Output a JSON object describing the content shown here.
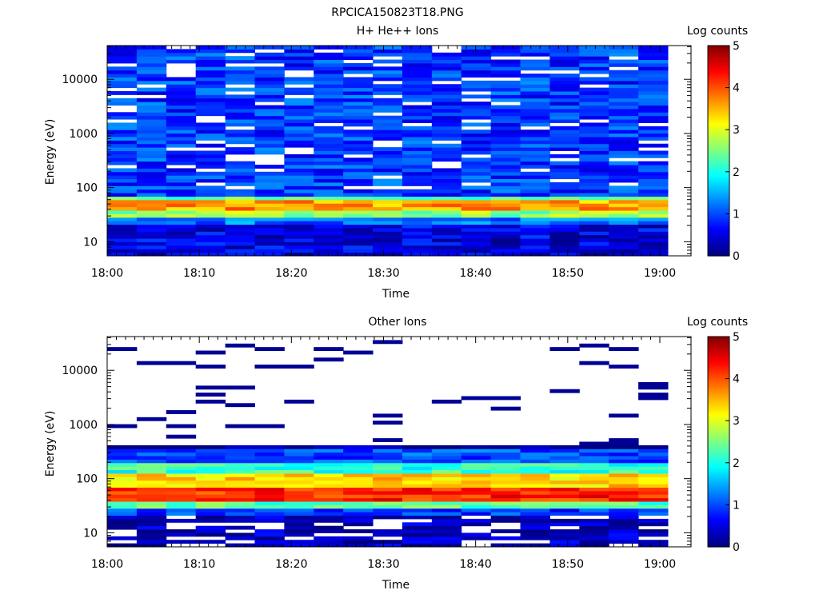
{
  "figure_title": "RPCICA150823T18.PNG",
  "chart_data": [
    {
      "type": "heatmap",
      "title": "H+ He++ Ions",
      "xlabel": "Time",
      "ylabel": "Energy (eV)",
      "x_ticks": [
        "18:00",
        "18:10",
        "18:20",
        "18:30",
        "18:40",
        "18:50",
        "19:00"
      ],
      "y_ticks": [
        "10",
        "100",
        "1000",
        "10000"
      ],
      "y_scale": "log",
      "ylim": [
        5.5,
        42000
      ],
      "time_bins": 19,
      "time_bin_labels": [
        "18:00",
        "18:03",
        "18:06",
        "18:10",
        "18:13",
        "18:16",
        "18:19",
        "18:22",
        "18:26",
        "18:29",
        "18:32",
        "18:35",
        "18:38",
        "18:42",
        "18:45",
        "18:48",
        "18:51",
        "18:54",
        "18:58"
      ],
      "energy_bands_eV": [
        {
          "range": [
            5.5,
            22
          ],
          "log_counts": 0.5
        },
        {
          "range": [
            22,
            28
          ],
          "log_counts": 1.2
        },
        {
          "range": [
            28,
            38
          ],
          "log_counts": 2.6
        },
        {
          "range": [
            38,
            58
          ],
          "log_counts": 3.6
        },
        {
          "range": [
            58,
            72
          ],
          "log_counts": 2.4
        },
        {
          "range": [
            72,
            42000
          ],
          "log_counts": 0.9
        }
      ],
      "colorbar": {
        "label": "Log counts",
        "min": 0,
        "max": 5,
        "ticks": [
          "0",
          "1",
          "2",
          "3",
          "4",
          "5"
        ]
      },
      "colormap": "jet",
      "grid": false,
      "legend_position": "right"
    },
    {
      "type": "heatmap",
      "title": "Other Ions",
      "xlabel": "Time",
      "ylabel": "Energy (eV)",
      "x_ticks": [
        "18:00",
        "18:10",
        "18:20",
        "18:30",
        "18:40",
        "18:50",
        "19:00"
      ],
      "y_ticks": [
        "10",
        "100",
        "1000",
        "10000"
      ],
      "y_scale": "log",
      "ylim": [
        5.5,
        42000
      ],
      "time_bins": 19,
      "energy_bands_eV": [
        {
          "range": [
            5.5,
            22
          ],
          "log_counts": 0.3
        },
        {
          "range": [
            22,
            28
          ],
          "log_counts": 0.9
        },
        {
          "range": [
            28,
            40
          ],
          "log_counts": 2.3
        },
        {
          "range": [
            40,
            70
          ],
          "log_counts": 4.2
        },
        {
          "range": [
            70,
            120
          ],
          "log_counts": 3.3
        },
        {
          "range": [
            120,
            200
          ],
          "log_counts": 2.1
        },
        {
          "range": [
            200,
            350
          ],
          "log_counts": 1.0
        },
        {
          "range": [
            350,
            42000
          ],
          "log_counts": 0.1
        }
      ],
      "colorbar": {
        "label": "Log counts",
        "min": 0,
        "max": 5,
        "ticks": [
          "0",
          "1",
          "2",
          "3",
          "4",
          "5"
        ]
      },
      "colormap": "jet",
      "grid": false,
      "legend_position": "right"
    }
  ]
}
